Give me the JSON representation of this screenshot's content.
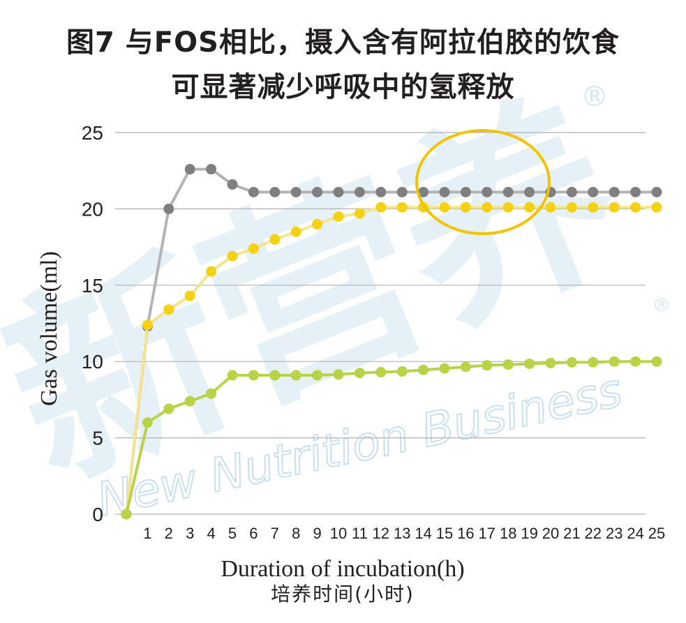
{
  "title_line1": "图7 与FOS相比，摄入含有阿拉伯胶的饮食",
  "title_line2": "可显著减少呼吸中的氢释放",
  "watermark": {
    "cn": "新营养",
    "en": "New Nutrition Business",
    "registered": "®"
  },
  "chart_data": {
    "type": "line",
    "title": "图7 与FOS相比，摄入含有阿拉伯胶的饮食 可显著减少呼吸中的氢释放",
    "xlabel": "Duration of incubation(h)",
    "xlabel_cn": "培养时间(小时)",
    "ylabel": "Gas volume(ml)",
    "x": [
      0,
      1,
      2,
      3,
      4,
      5,
      6,
      7,
      8,
      9,
      10,
      11,
      12,
      13,
      14,
      15,
      16,
      17,
      18,
      19,
      20,
      21,
      22,
      23,
      24,
      25
    ],
    "x_tick_labels": [
      "1",
      "2",
      "3",
      "4",
      "5",
      "6",
      "7",
      "8",
      "9",
      "10",
      "11",
      "12",
      "13",
      "14",
      "15",
      "16",
      "17",
      "18",
      "19",
      "20",
      "21",
      "22",
      "23",
      "24",
      "25"
    ],
    "ylim": [
      0,
      25
    ],
    "yticks": [
      "0",
      "5",
      "10",
      "15",
      "20",
      "25"
    ],
    "grid": true,
    "legend": "none",
    "highlight": "ellipse around gray and yellow series, x≈15–21",
    "series": [
      {
        "color": "#7f7f7f",
        "line_color": "#b3b3b3",
        "values": [
          0,
          12.3,
          20,
          22.6,
          22.6,
          21.6,
          21.1,
          21.1,
          21.1,
          21.1,
          21.1,
          21.1,
          21.1,
          21.1,
          21.1,
          21.1,
          21.1,
          21.1,
          21.1,
          21.1,
          21.1,
          21.1,
          21.1,
          21.1,
          21.1,
          21.1
        ]
      },
      {
        "color": "#f5d211",
        "line_color": "#f7e38c",
        "values": [
          0,
          12.4,
          13.4,
          14.3,
          15.9,
          16.9,
          17.4,
          18.0,
          18.5,
          19.0,
          19.5,
          19.7,
          20.1,
          20.1,
          20.1,
          20.1,
          20.1,
          20.1,
          20.1,
          20.1,
          20.1,
          20.1,
          20.1,
          20.1,
          20.1,
          20.1
        ]
      },
      {
        "color": "#b8d348",
        "line_color": "#b8d348",
        "values": [
          0,
          6.0,
          6.9,
          7.4,
          7.9,
          9.1,
          9.1,
          9.1,
          9.1,
          9.1,
          9.15,
          9.25,
          9.3,
          9.35,
          9.45,
          9.55,
          9.65,
          9.75,
          9.8,
          9.85,
          9.9,
          9.95,
          9.95,
          10.0,
          10.0,
          10.0
        ]
      }
    ]
  }
}
